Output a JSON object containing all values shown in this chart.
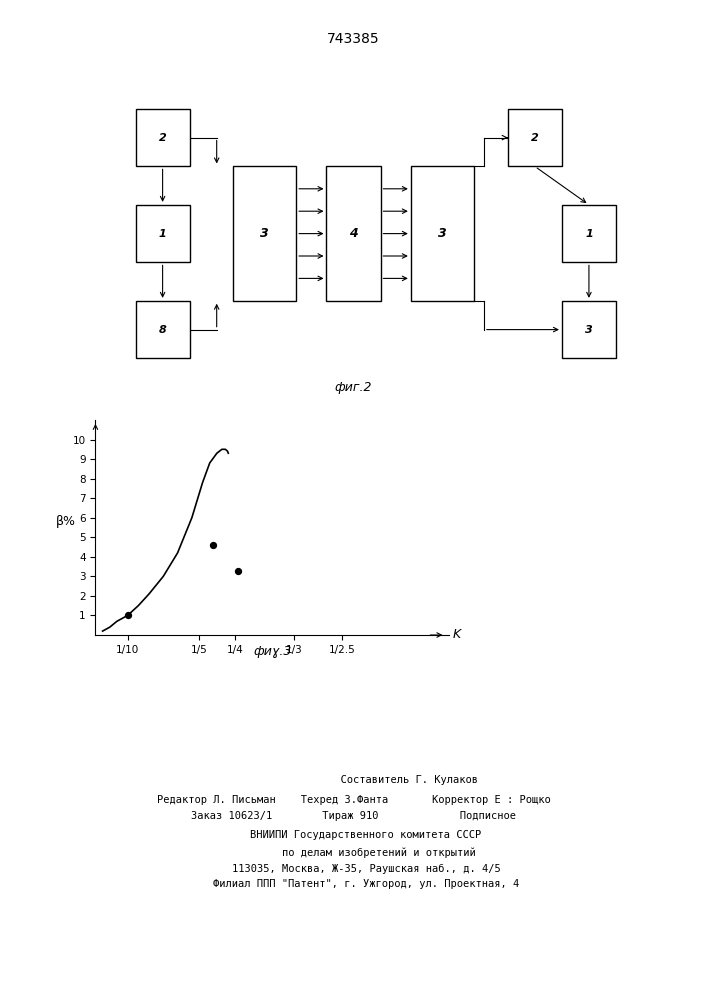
{
  "title": "743385",
  "fig2_label": "фиг.2",
  "fig3_label": "фиɣ.3",
  "graph_ylabel": "β%",
  "graph_xlabel": "K",
  "yticks": [
    1,
    2,
    3,
    4,
    5,
    6,
    7,
    8,
    9,
    10
  ],
  "xtick_labels": [
    "1/10",
    "1/5",
    "1/4",
    "1/3",
    "1/2.5"
  ],
  "xtick_positions": [
    0.1,
    0.2,
    0.25,
    0.333,
    0.4
  ],
  "data_points_x": [
    0.1,
    0.22,
    0.255
  ],
  "data_points_y": [
    1.0,
    4.6,
    3.3
  ],
  "curve_x": [
    0.065,
    0.075,
    0.085,
    0.1,
    0.115,
    0.13,
    0.15,
    0.17,
    0.19,
    0.205,
    0.215,
    0.225,
    0.232,
    0.237,
    0.24,
    0.241
  ],
  "curve_y": [
    0.2,
    0.4,
    0.7,
    1.0,
    1.5,
    2.1,
    3.0,
    4.2,
    6.0,
    7.8,
    8.8,
    9.3,
    9.5,
    9.5,
    9.4,
    9.3
  ],
  "footer_line1": "                  Составитель Г. Кулаков",
  "footer_line2": "Редактор Л. Письман    Техред 3.Фанта       Корректор Е : Рощко",
  "footer_line3": "Заказ 10623/1        Тираж 910             Подписное",
  "footer_line4": "    ВНИИПИ Государственного комитета СССР",
  "footer_line5": "        по делам изобретений и открытий",
  "footer_line6": "    113035, Москва, Ж-35, Раушская наб., д. 4/5",
  "footer_line7": "    Филиал ППП \"Патент\", г. Ужгород, ул. Проектная, 4"
}
